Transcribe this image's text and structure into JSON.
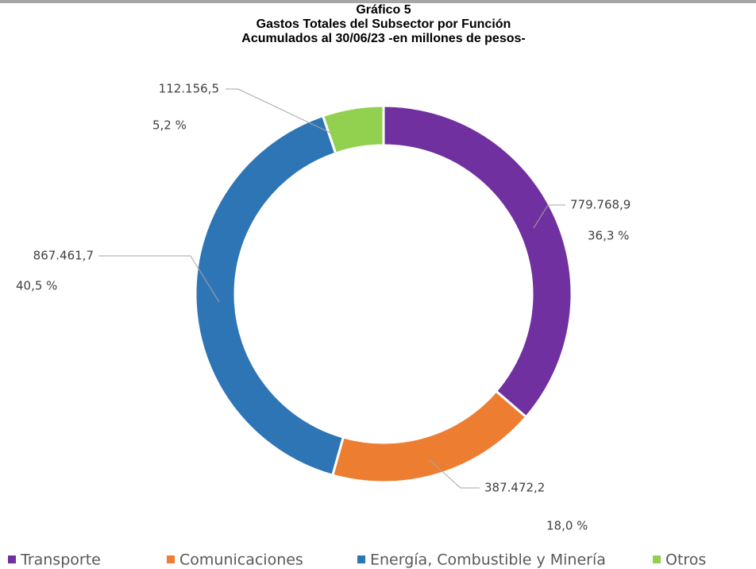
{
  "chart_data": {
    "type": "donut",
    "title_lines": [
      "Gráfico 5",
      "Gastos Totales del Subsector por Función",
      "Acumulados al 30/06/23 -en millones de pesos-"
    ],
    "categories": [
      "Transporte",
      "Comunicaciones",
      "Energía, Combustible y Minería",
      "Otros"
    ],
    "values": [
      779768.9,
      387472.2,
      867461.7,
      112156.5
    ],
    "value_labels": [
      "779.768,9",
      "387.472,2",
      "867.461,7",
      "112.156,5"
    ],
    "percentages": [
      36.3,
      18.0,
      40.5,
      5.2
    ],
    "percentage_labels": [
      "36,3 %",
      "18,0 %",
      "40,5 %",
      "5,2 %"
    ],
    "colors": [
      "#7030a0",
      "#ed7d31",
      "#2e75b6",
      "#92d050"
    ],
    "legend": "bottom"
  }
}
